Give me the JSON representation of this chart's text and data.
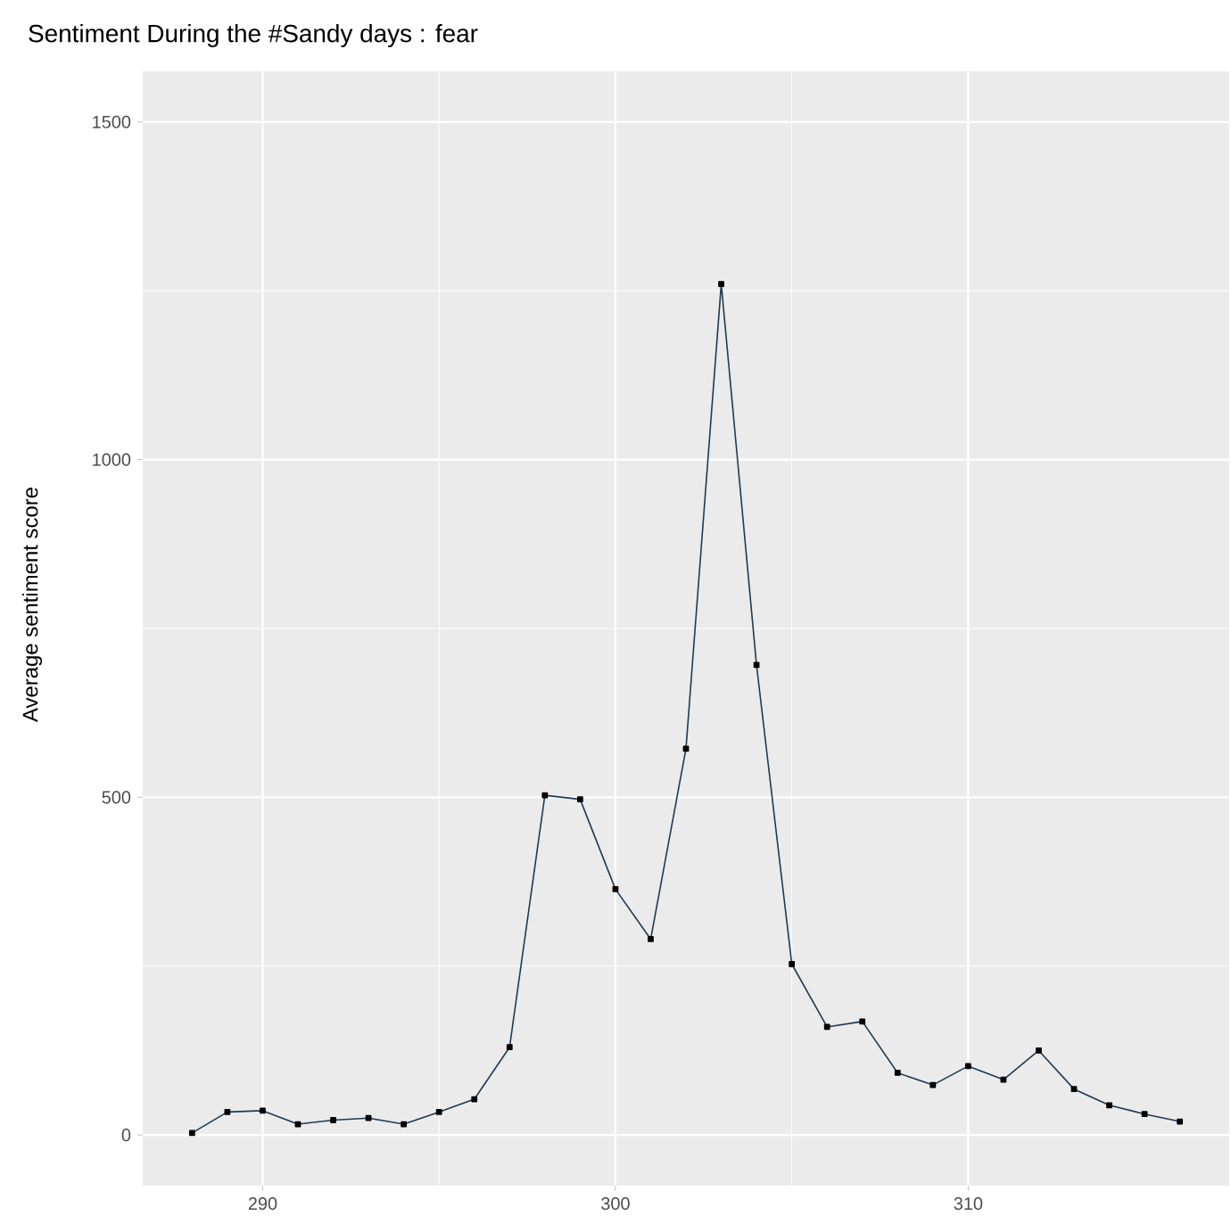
{
  "chart_data": {
    "type": "line",
    "title": "Sentiment During the #Sandy days : fear",
    "ylabel": "Average sentiment score",
    "x": [
      288,
      289,
      290,
      291,
      292,
      293,
      294,
      295,
      296,
      297,
      298,
      299,
      300,
      301,
      302,
      303,
      304,
      305,
      306,
      307,
      308,
      309,
      310,
      311,
      312,
      313,
      314,
      315,
      316
    ],
    "series": [
      {
        "color": "#1f3a56",
        "values": [
          3,
          34,
          36,
          16,
          22,
          25,
          16,
          34,
          53,
          130,
          503,
          497,
          364,
          290,
          572,
          1260,
          696,
          253,
          160,
          168,
          92,
          74,
          102,
          82,
          125,
          68,
          44,
          31,
          20
        ]
      }
    ],
    "xlim": [
      286.6,
      317.4
    ],
    "ylim": [
      -75,
      1575
    ],
    "xticks": [
      290,
      300,
      310
    ],
    "yticks": [
      0,
      500,
      1000,
      1500
    ],
    "grid": true,
    "marker": "square",
    "line_style": "solid"
  }
}
